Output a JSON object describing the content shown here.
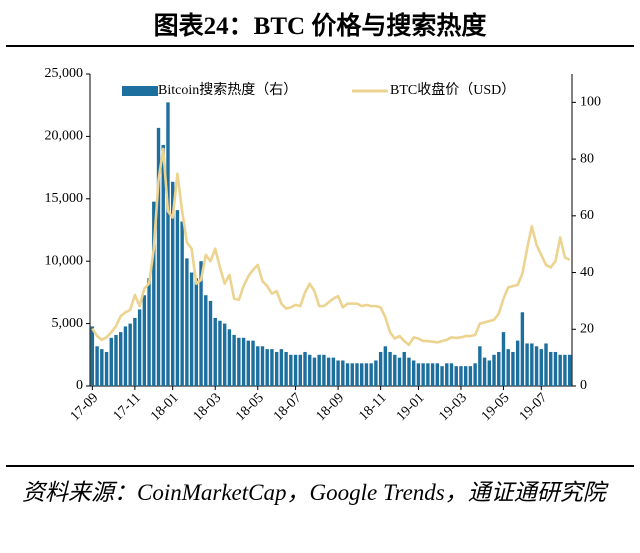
{
  "chart_data": {
    "type": "bar-line",
    "title": "图表24：BTC 价格与搜索热度",
    "source": "资料来源：CoinMarketCap，Google Trends，通证通研究院",
    "categories": [
      "17-09",
      null,
      null,
      null,
      null,
      null,
      null,
      null,
      null,
      "17-11",
      null,
      null,
      null,
      null,
      null,
      null,
      null,
      "18-01",
      null,
      null,
      null,
      null,
      null,
      null,
      null,
      null,
      "18-03",
      null,
      null,
      null,
      null,
      null,
      null,
      null,
      null,
      "18-05",
      null,
      null,
      null,
      null,
      null,
      null,
      null,
      "18-07",
      null,
      null,
      null,
      null,
      null,
      null,
      null,
      null,
      "18-09",
      null,
      null,
      null,
      null,
      null,
      null,
      null,
      null,
      "18-11",
      null,
      null,
      null,
      null,
      null,
      null,
      null,
      "19-01",
      null,
      null,
      null,
      null,
      null,
      null,
      null,
      null,
      "19-03",
      null,
      null,
      null,
      null,
      null,
      null,
      null,
      null,
      "19-05",
      null,
      null,
      null,
      null,
      null,
      null,
      null,
      "19-07",
      null,
      null,
      null,
      null,
      null,
      null
    ],
    "series": [
      {
        "name": "Bitcoin搜索热度（右）",
        "color": "#1d6f9e",
        "axis": "y2",
        "values": [
          21,
          14,
          13,
          12,
          17,
          18,
          19,
          21,
          22,
          24,
          27,
          32,
          38,
          65,
          91,
          85,
          100,
          72,
          62,
          58,
          45,
          40,
          38,
          44,
          32,
          30,
          24,
          23,
          22,
          20,
          18,
          17,
          17,
          16,
          16,
          14,
          14,
          13,
          13,
          12,
          13,
          12,
          11,
          11,
          11,
          12,
          11,
          10,
          11,
          11,
          10,
          10,
          9,
          9,
          8,
          8,
          8,
          8,
          8,
          8,
          9,
          12,
          14,
          12,
          11,
          10,
          12,
          10,
          9,
          8,
          8,
          8,
          8,
          8,
          7,
          8,
          8,
          7,
          7,
          7,
          7,
          8,
          14,
          10,
          9,
          11,
          12,
          19,
          13,
          12,
          16,
          26,
          15,
          15,
          14,
          13,
          15,
          12,
          12,
          11,
          11,
          11
        ]
      },
      {
        "name": "BTC收盘价（USD）",
        "color": "#ecd38f",
        "values": [
          4600,
          4000,
          3700,
          3900,
          4300,
          4800,
          5600,
          5900,
          6100,
          7300,
          6400,
          7800,
          8200,
          11000,
          16500,
          19000,
          14000,
          13500,
          17000,
          14000,
          11500,
          11000,
          8200,
          8500,
          10500,
          10000,
          11000,
          9500,
          8200,
          8900,
          7000,
          6900,
          8000,
          8800,
          9300,
          9700,
          8400,
          8000,
          7400,
          7600,
          6600,
          6200,
          6300,
          6500,
          6400,
          7500,
          8200,
          7600,
          6400,
          6400,
          6700,
          7000,
          7200,
          6300,
          6600,
          6600,
          6600,
          6400,
          6500,
          6400,
          6400,
          6300,
          5500,
          4300,
          3800,
          4000,
          3600,
          3300,
          3900,
          3800,
          3600,
          3600,
          3550,
          3500,
          3600,
          3700,
          3900,
          3850,
          3900,
          4000,
          4000,
          4100,
          5000,
          5100,
          5200,
          5300,
          5800,
          7000,
          7900,
          8000,
          8100,
          9000,
          11000,
          12800,
          11300,
          10500,
          9700,
          9500,
          10000,
          11900,
          10300,
          10100
        ]
      }
    ],
    "ylim": [
      0,
      25000
    ],
    "yticks": [
      0,
      {
        "value": 5000,
        "label": "5,000"
      },
      {
        "value": 10000,
        "label": "10,000"
      },
      {
        "value": 15000,
        "label": "15,000"
      },
      {
        "value": 20000,
        "label": "20,000"
      },
      {
        "value": 25000,
        "label": "25,000"
      }
    ],
    "y2lim": [
      0,
      110
    ],
    "y2ticks": [
      0,
      20,
      40,
      60,
      80,
      100
    ],
    "legend": "top"
  }
}
